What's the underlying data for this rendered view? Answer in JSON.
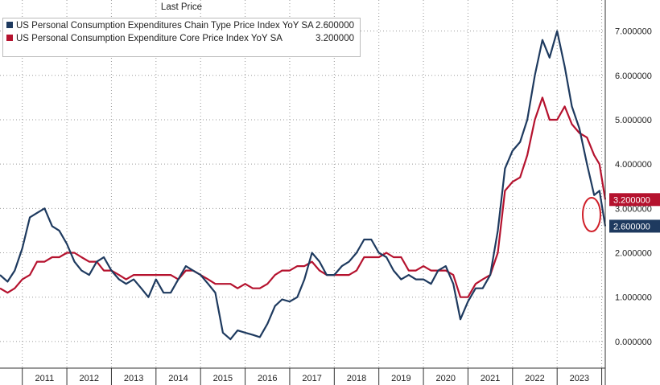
{
  "legend": {
    "title": "Last Price",
    "items": [
      {
        "name": "US Personal Consumption Expenditures Chain Type Price Index YoY SA",
        "value": "2.600000",
        "color": "#1e3a5f"
      },
      {
        "name": "US Personal Consumption Expenditure Core Price Index YoY SA",
        "value": "3.200000",
        "color": "#b5122e"
      }
    ]
  },
  "chart_data": {
    "type": "line",
    "title": "",
    "xlabel": "",
    "ylabel": "",
    "x_ticks": [
      "2011",
      "2012",
      "2013",
      "2014",
      "2015",
      "2016",
      "2017",
      "2018",
      "2019",
      "2020",
      "2021",
      "2022",
      "2023"
    ],
    "y_ticks": [
      "0.000000",
      "1.000000",
      "2.000000",
      "3.000000",
      "4.000000",
      "5.000000",
      "6.000000",
      "7.000000"
    ],
    "xlim": [
      2010.0,
      2023.58
    ],
    "ylim": [
      -0.6,
      7.7
    ],
    "grid": true,
    "legend_position": "top-left",
    "last_value_labels": [
      {
        "series": "core",
        "text": "3.200000",
        "color": "#b5122e"
      },
      {
        "series": "headline",
        "text": "2.600000",
        "color": "#1e3a5f"
      }
    ],
    "series": [
      {
        "name": "US Personal Consumption Expenditures Chain Type Price Index YoY SA",
        "key": "headline",
        "color": "#1e3a5f",
        "points": [
          [
            2010.0,
            1.5
          ],
          [
            2010.17,
            1.35
          ],
          [
            2010.33,
            1.6
          ],
          [
            2010.5,
            2.1
          ],
          [
            2010.67,
            2.8
          ],
          [
            2010.83,
            2.9
          ],
          [
            2011.0,
            3.0
          ],
          [
            2011.17,
            2.6
          ],
          [
            2011.33,
            2.5
          ],
          [
            2011.5,
            2.2
          ],
          [
            2011.67,
            1.8
          ],
          [
            2011.83,
            1.6
          ],
          [
            2012.0,
            1.5
          ],
          [
            2012.17,
            1.8
          ],
          [
            2012.33,
            1.9
          ],
          [
            2012.5,
            1.6
          ],
          [
            2012.67,
            1.4
          ],
          [
            2012.83,
            1.3
          ],
          [
            2013.0,
            1.4
          ],
          [
            2013.17,
            1.2
          ],
          [
            2013.33,
            1.0
          ],
          [
            2013.5,
            1.4
          ],
          [
            2013.67,
            1.1
          ],
          [
            2013.83,
            1.1
          ],
          [
            2014.0,
            1.4
          ],
          [
            2014.17,
            1.7
          ],
          [
            2014.33,
            1.6
          ],
          [
            2014.5,
            1.5
          ],
          [
            2014.67,
            1.3
          ],
          [
            2014.83,
            1.1
          ],
          [
            2015.0,
            0.2
          ],
          [
            2015.17,
            0.05
          ],
          [
            2015.33,
            0.25
          ],
          [
            2015.5,
            0.2
          ],
          [
            2015.67,
            0.15
          ],
          [
            2015.83,
            0.1
          ],
          [
            2016.0,
            0.4
          ],
          [
            2016.17,
            0.8
          ],
          [
            2016.33,
            0.95
          ],
          [
            2016.5,
            0.9
          ],
          [
            2016.67,
            1.0
          ],
          [
            2016.83,
            1.4
          ],
          [
            2017.0,
            2.0
          ],
          [
            2017.17,
            1.8
          ],
          [
            2017.33,
            1.5
          ],
          [
            2017.5,
            1.5
          ],
          [
            2017.67,
            1.7
          ],
          [
            2017.83,
            1.8
          ],
          [
            2018.0,
            2.0
          ],
          [
            2018.17,
            2.3
          ],
          [
            2018.33,
            2.3
          ],
          [
            2018.5,
            2.0
          ],
          [
            2018.67,
            1.9
          ],
          [
            2018.83,
            1.6
          ],
          [
            2019.0,
            1.4
          ],
          [
            2019.17,
            1.5
          ],
          [
            2019.33,
            1.4
          ],
          [
            2019.5,
            1.4
          ],
          [
            2019.67,
            1.3
          ],
          [
            2019.83,
            1.6
          ],
          [
            2020.0,
            1.7
          ],
          [
            2020.17,
            1.3
          ],
          [
            2020.33,
            0.5
          ],
          [
            2020.5,
            0.9
          ],
          [
            2020.67,
            1.2
          ],
          [
            2020.83,
            1.2
          ],
          [
            2021.0,
            1.5
          ],
          [
            2021.17,
            2.5
          ],
          [
            2021.33,
            3.9
          ],
          [
            2021.5,
            4.3
          ],
          [
            2021.67,
            4.5
          ],
          [
            2021.83,
            5.0
          ],
          [
            2022.0,
            6.0
          ],
          [
            2022.17,
            6.8
          ],
          [
            2022.33,
            6.4
          ],
          [
            2022.5,
            7.0
          ],
          [
            2022.67,
            6.2
          ],
          [
            2022.83,
            5.3
          ],
          [
            2023.0,
            4.8
          ],
          [
            2023.17,
            4.0
          ],
          [
            2023.33,
            3.3
          ],
          [
            2023.45,
            3.4
          ],
          [
            2023.58,
            2.6
          ]
        ]
      },
      {
        "name": "US Personal Consumption Expenditure Core Price Index YoY SA",
        "key": "core",
        "color": "#b5122e",
        "points": [
          [
            2010.0,
            1.2
          ],
          [
            2010.17,
            1.1
          ],
          [
            2010.33,
            1.2
          ],
          [
            2010.5,
            1.4
          ],
          [
            2010.67,
            1.5
          ],
          [
            2010.83,
            1.8
          ],
          [
            2011.0,
            1.8
          ],
          [
            2011.17,
            1.9
          ],
          [
            2011.33,
            1.9
          ],
          [
            2011.5,
            2.0
          ],
          [
            2011.67,
            2.0
          ],
          [
            2011.83,
            1.9
          ],
          [
            2012.0,
            1.8
          ],
          [
            2012.17,
            1.8
          ],
          [
            2012.33,
            1.6
          ],
          [
            2012.5,
            1.6
          ],
          [
            2012.67,
            1.5
          ],
          [
            2012.83,
            1.4
          ],
          [
            2013.0,
            1.5
          ],
          [
            2013.17,
            1.5
          ],
          [
            2013.33,
            1.5
          ],
          [
            2013.5,
            1.5
          ],
          [
            2013.67,
            1.5
          ],
          [
            2013.83,
            1.5
          ],
          [
            2014.0,
            1.4
          ],
          [
            2014.17,
            1.6
          ],
          [
            2014.33,
            1.6
          ],
          [
            2014.5,
            1.5
          ],
          [
            2014.67,
            1.4
          ],
          [
            2014.83,
            1.3
          ],
          [
            2015.0,
            1.3
          ],
          [
            2015.17,
            1.3
          ],
          [
            2015.33,
            1.2
          ],
          [
            2015.5,
            1.3
          ],
          [
            2015.67,
            1.2
          ],
          [
            2015.83,
            1.2
          ],
          [
            2016.0,
            1.3
          ],
          [
            2016.17,
            1.5
          ],
          [
            2016.33,
            1.6
          ],
          [
            2016.5,
            1.6
          ],
          [
            2016.67,
            1.7
          ],
          [
            2016.83,
            1.7
          ],
          [
            2017.0,
            1.8
          ],
          [
            2017.17,
            1.6
          ],
          [
            2017.33,
            1.5
          ],
          [
            2017.5,
            1.5
          ],
          [
            2017.67,
            1.5
          ],
          [
            2017.83,
            1.5
          ],
          [
            2018.0,
            1.6
          ],
          [
            2018.17,
            1.9
          ],
          [
            2018.33,
            1.9
          ],
          [
            2018.5,
            1.9
          ],
          [
            2018.67,
            2.0
          ],
          [
            2018.83,
            1.9
          ],
          [
            2019.0,
            1.9
          ],
          [
            2019.17,
            1.6
          ],
          [
            2019.33,
            1.6
          ],
          [
            2019.5,
            1.7
          ],
          [
            2019.67,
            1.6
          ],
          [
            2019.83,
            1.6
          ],
          [
            2020.0,
            1.6
          ],
          [
            2020.17,
            1.5
          ],
          [
            2020.33,
            1.0
          ],
          [
            2020.5,
            1.0
          ],
          [
            2020.67,
            1.3
          ],
          [
            2020.83,
            1.4
          ],
          [
            2021.0,
            1.5
          ],
          [
            2021.17,
            2.0
          ],
          [
            2021.33,
            3.4
          ],
          [
            2021.5,
            3.6
          ],
          [
            2021.67,
            3.7
          ],
          [
            2021.83,
            4.2
          ],
          [
            2022.0,
            5.0
          ],
          [
            2022.17,
            5.5
          ],
          [
            2022.33,
            5.0
          ],
          [
            2022.5,
            5.0
          ],
          [
            2022.67,
            5.3
          ],
          [
            2022.83,
            4.9
          ],
          [
            2023.0,
            4.7
          ],
          [
            2023.17,
            4.6
          ],
          [
            2023.33,
            4.2
          ],
          [
            2023.45,
            4.0
          ],
          [
            2023.58,
            3.2
          ]
        ]
      }
    ]
  }
}
